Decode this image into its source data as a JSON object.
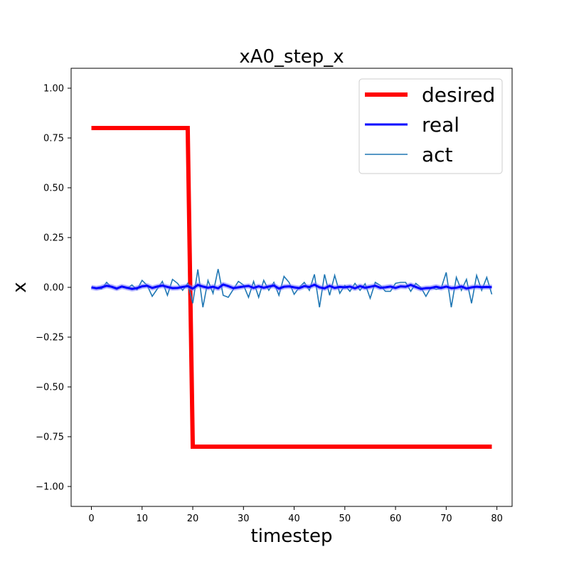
{
  "chart_data": {
    "type": "line",
    "title": "xA0_step_x",
    "xlabel": "timestep",
    "ylabel": "x",
    "xlim": [
      -4,
      83
    ],
    "ylim": [
      -1.1,
      1.1
    ],
    "xticks": [
      0,
      10,
      20,
      30,
      40,
      50,
      60,
      70,
      80
    ],
    "xtick_labels": [
      "0",
      "10",
      "20",
      "30",
      "40",
      "50",
      "60",
      "70",
      "80"
    ],
    "yticks": [
      -1.0,
      -0.75,
      -0.5,
      -0.25,
      0.0,
      0.25,
      0.5,
      0.75,
      1.0
    ],
    "ytick_labels": [
      "−1.00",
      "−0.75",
      "−0.50",
      "−0.25",
      "0.00",
      "0.25",
      "0.50",
      "0.75",
      "1.00"
    ],
    "grid": false,
    "legend_position": "top-right",
    "series": [
      {
        "name": "desired",
        "color": "#ff0000",
        "x": [
          0,
          19,
          20,
          79
        ],
        "values": [
          0.8,
          0.8,
          -0.8,
          -0.8
        ]
      },
      {
        "name": "real",
        "color": "#0000ff",
        "x": [
          0,
          1,
          2,
          3,
          4,
          5,
          6,
          7,
          8,
          9,
          10,
          11,
          12,
          13,
          14,
          15,
          16,
          17,
          18,
          19,
          20,
          21,
          22,
          23,
          24,
          25,
          26,
          27,
          28,
          29,
          30,
          31,
          32,
          33,
          34,
          35,
          36,
          37,
          38,
          39,
          40,
          41,
          42,
          43,
          44,
          45,
          46,
          47,
          48,
          49,
          50,
          51,
          52,
          53,
          54,
          55,
          56,
          57,
          58,
          59,
          60,
          61,
          62,
          63,
          64,
          65,
          66,
          67,
          68,
          69,
          70,
          71,
          72,
          73,
          74,
          75,
          76,
          77,
          78,
          79
        ],
        "values": [
          0.0,
          -0.005,
          0.0,
          0.008,
          0.003,
          -0.006,
          0.004,
          -0.002,
          -0.008,
          -0.004,
          0.005,
          0.008,
          -0.003,
          0.004,
          0.009,
          0.002,
          -0.004,
          -0.003,
          0.002,
          0.006,
          -0.006,
          0.012,
          0.004,
          -0.002,
          0.003,
          -0.005,
          0.014,
          0.006,
          -0.004,
          0.0,
          0.004,
          0.007,
          -0.003,
          0.005,
          -0.002,
          0.004,
          0.009,
          -0.006,
          0.003,
          0.005,
          0.0,
          -0.004,
          0.006,
          0.002,
          0.013,
          0.0,
          -0.005,
          0.007,
          -0.003,
          0.002,
          0.0,
          0.004,
          -0.005,
          0.006,
          -0.002,
          0.003,
          0.008,
          -0.002,
          0.0,
          0.004,
          -0.003,
          0.005,
          0.003,
          0.012,
          0.002,
          -0.008,
          -0.004,
          -0.003,
          0.003,
          -0.003,
          0.004,
          -0.004,
          -0.002,
          0.004,
          -0.006,
          0.0,
          0.003,
          0.001,
          0.002,
          0.001
        ]
      },
      {
        "name": "act",
        "color": "#1f77b4",
        "x": [
          0,
          1,
          2,
          3,
          4,
          5,
          6,
          7,
          8,
          9,
          10,
          11,
          12,
          13,
          14,
          15,
          16,
          17,
          18,
          19,
          20,
          21,
          22,
          23,
          24,
          25,
          26,
          27,
          28,
          29,
          30,
          31,
          32,
          33,
          34,
          35,
          36,
          37,
          38,
          39,
          40,
          41,
          42,
          43,
          44,
          45,
          46,
          47,
          48,
          49,
          50,
          51,
          52,
          53,
          54,
          55,
          56,
          57,
          58,
          59,
          60,
          61,
          62,
          63,
          64,
          65,
          66,
          67,
          68,
          69,
          70,
          71,
          72,
          73,
          74,
          75,
          76,
          77,
          78,
          79
        ],
        "values": [
          0.0,
          -0.005,
          -0.008,
          0.025,
          0.0,
          -0.01,
          0.005,
          -0.006,
          0.012,
          -0.012,
          0.035,
          0.01,
          -0.045,
          -0.008,
          0.03,
          -0.04,
          0.04,
          0.02,
          -0.015,
          0.02,
          -0.08,
          0.09,
          -0.1,
          0.035,
          -0.03,
          0.092,
          -0.04,
          -0.05,
          -0.01,
          0.03,
          0.012,
          -0.05,
          0.03,
          -0.05,
          0.035,
          -0.015,
          0.025,
          -0.04,
          0.055,
          0.025,
          -0.035,
          0.0,
          0.025,
          -0.015,
          0.065,
          -0.1,
          0.065,
          -0.04,
          0.06,
          -0.03,
          0.01,
          -0.02,
          0.02,
          -0.015,
          0.018,
          -0.055,
          0.025,
          0.01,
          -0.02,
          -0.02,
          0.02,
          0.025,
          0.025,
          -0.02,
          0.02,
          0.0,
          -0.045,
          0.0,
          -0.01,
          -0.005,
          0.075,
          -0.1,
          0.05,
          -0.015,
          0.04,
          -0.08,
          0.06,
          -0.015,
          0.05,
          -0.035
        ]
      }
    ]
  }
}
